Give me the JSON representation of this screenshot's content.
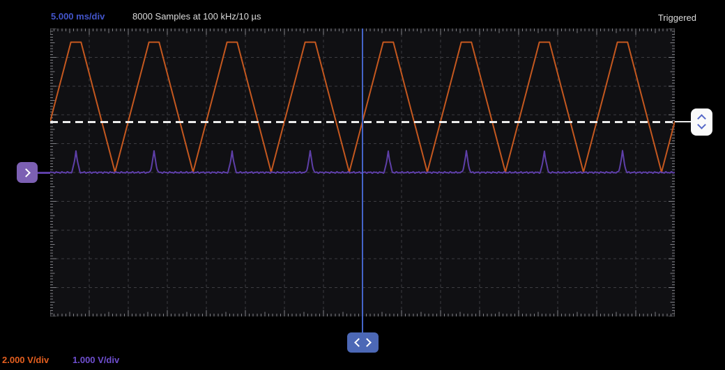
{
  "header": {
    "timebase": "5.000 ms/div",
    "samples": "8000 Samples at 100 kHz/10 µs",
    "trigger_status": "Triggered"
  },
  "footer": {
    "ch1_scale": "2.000 V/div",
    "ch2_scale": "1.000 V/div"
  },
  "icons": {
    "left_handle": "chevron-right",
    "right_handle": "chevron-up-down",
    "bottom_handle": "chevron-left-right"
  },
  "colors": {
    "background": "#000000",
    "plot_background": "#101013",
    "grid": "#3d3d42",
    "ticks": "#7f8085",
    "timebase_text": "#4355cb",
    "white_text": "#dcdcdc",
    "ch1": "#c5581f",
    "ch1_label": "#e55f1f",
    "ch2": "#5e3fa8",
    "ch2_label": "#6f4fd0",
    "cursor_blue": "#4565c9",
    "trigger_line": "#ececec",
    "left_handle_bg": "#7c60b3",
    "right_handle_bg": "#fafafa",
    "bottom_handle_bg": "#4c68b6"
  },
  "chart_data": {
    "type": "line",
    "title": "Oscilloscope capture",
    "acquisition": {
      "samples": 8000,
      "rate": "100 kHz",
      "interval": "10 µs",
      "status": "Triggered"
    },
    "x_axis": {
      "unit": "ms",
      "per_div": 5,
      "divisions": 16,
      "total_ms": 80,
      "minor_per_div": 10
    },
    "y_axis": {
      "divisions": 10,
      "minor_per_div": 10
    },
    "grid": true,
    "trigger": {
      "status": "Triggered",
      "level_v": 3.5,
      "source_channel": 1,
      "position_div": 8
    },
    "series": [
      {
        "name": "channel-1",
        "color": "#c5581f",
        "volts_per_div": 2.0,
        "scale_label": "2.000 V/div",
        "shape": "clipped-triangle",
        "period_ms": 10,
        "first_peak_ms": 3.3,
        "v_min": 0.02,
        "v_max": 9.05,
        "flat_top_half_ms": 0.65
      },
      {
        "name": "channel-2",
        "color": "#5e3fa8",
        "volts_per_div": 1.0,
        "scale_label": "1.000 V/div",
        "shape": "pulse-train",
        "period_ms": 10,
        "first_peak_ms": 3.3,
        "baseline_v": 0,
        "peak_v": 0.75,
        "pulse_half_width_ms": 0.6,
        "noise_v": 0.015
      }
    ]
  }
}
